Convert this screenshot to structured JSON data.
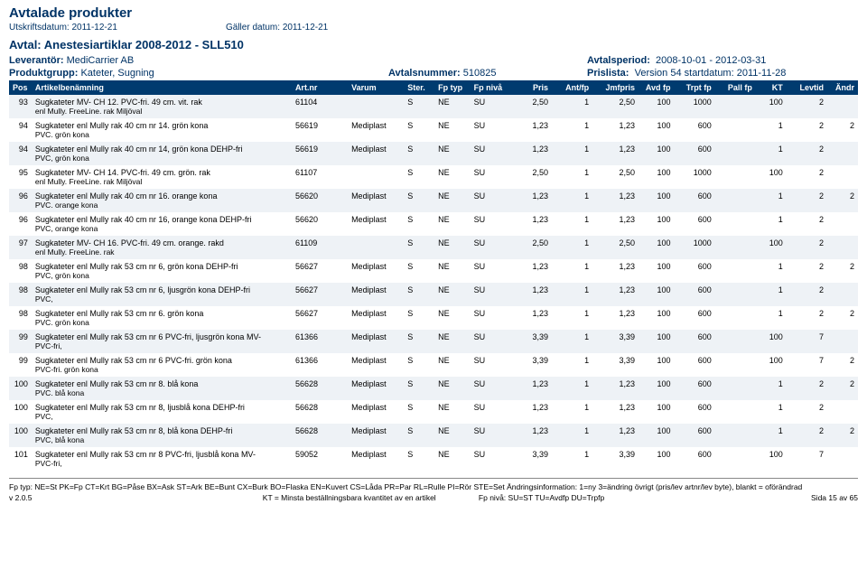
{
  "header": {
    "title": "Avtalade produkter",
    "print_label": "Utskriftsdatum:",
    "print_date": "2011-12-21",
    "valid_label": "Gäller datum:",
    "valid_date": "2011-12-21"
  },
  "agreement": {
    "title": "Avtal: Anestesiartiklar 2008-2012 - SLL510",
    "supplier_label": "Leverantör:",
    "supplier": "MediCarrier AB",
    "period_label": "Avtalsperiod:",
    "period": "2008-10-01 - 2012-03-31",
    "group_label": "Produktgrupp:",
    "group": "Kateter, Sugning",
    "number_label": "Avtalsnummer:",
    "number": "510825",
    "price_label": "Prislista:",
    "price_list": "Version 54 startdatum: 2011-11-28"
  },
  "columns": [
    "Pos",
    "Artikelbenämning",
    "Art.nr",
    "Varum",
    "Ster.",
    "Fp typ",
    "Fp nivå",
    "Pris",
    "Ant/fp",
    "Jmfpris",
    "Avd fp",
    "Trpt fp",
    "Pall fp",
    "KT",
    "Levtid",
    "Ändr"
  ],
  "rows": [
    {
      "pos": "93",
      "name": "Sugkateter MV- CH 12. PVC-fri. 49 cm. vit. rak",
      "sub": "enl Mully. FreeLine. rak Miljöval",
      "art": "61104",
      "varum": "",
      "ster": "S",
      "fptyp": "NE",
      "fpniv": "SU",
      "pris": "2,50",
      "antfp": "1",
      "jmf": "2,50",
      "avd": "100",
      "trpt": "1000",
      "pall": "",
      "kt": "100",
      "lev": "2",
      "andr": ""
    },
    {
      "pos": "94",
      "name": "Sugkateter enl Mully rak 40 cm nr 14. grön kona",
      "sub": "PVC. grön kona",
      "art": "56619",
      "varum": "Mediplast",
      "ster": "S",
      "fptyp": "NE",
      "fpniv": "SU",
      "pris": "1,23",
      "antfp": "1",
      "jmf": "1,23",
      "avd": "100",
      "trpt": "600",
      "pall": "",
      "kt": "1",
      "lev": "2",
      "andr": "2"
    },
    {
      "pos": "94",
      "name": "Sugkateter enl Mully rak 40 cm nr 14, grön kona DEHP-fri",
      "sub": "PVC, grön kona",
      "art": "56619",
      "varum": "Mediplast",
      "ster": "S",
      "fptyp": "NE",
      "fpniv": "SU",
      "pris": "1,23",
      "antfp": "1",
      "jmf": "1,23",
      "avd": "100",
      "trpt": "600",
      "pall": "",
      "kt": "1",
      "lev": "2",
      "andr": ""
    },
    {
      "pos": "95",
      "name": "Sugkateter MV- CH 14. PVC-fri. 49 cm. grön. rak",
      "sub": "enl Mully. FreeLine. rak Miljöval",
      "art": "61107",
      "varum": "",
      "ster": "S",
      "fptyp": "NE",
      "fpniv": "SU",
      "pris": "2,50",
      "antfp": "1",
      "jmf": "2,50",
      "avd": "100",
      "trpt": "1000",
      "pall": "",
      "kt": "100",
      "lev": "2",
      "andr": ""
    },
    {
      "pos": "96",
      "name": "Sugkateter enl Mully rak 40 cm nr 16. orange kona",
      "sub": "PVC. orange kona",
      "art": "56620",
      "varum": "Mediplast",
      "ster": "S",
      "fptyp": "NE",
      "fpniv": "SU",
      "pris": "1,23",
      "antfp": "1",
      "jmf": "1,23",
      "avd": "100",
      "trpt": "600",
      "pall": "",
      "kt": "1",
      "lev": "2",
      "andr": "2"
    },
    {
      "pos": "96",
      "name": "Sugkateter enl Mully rak 40 cm nr 16, orange kona DEHP-fri",
      "sub": "PVC, orange kona",
      "art": "56620",
      "varum": "Mediplast",
      "ster": "S",
      "fptyp": "NE",
      "fpniv": "SU",
      "pris": "1,23",
      "antfp": "1",
      "jmf": "1,23",
      "avd": "100",
      "trpt": "600",
      "pall": "",
      "kt": "1",
      "lev": "2",
      "andr": ""
    },
    {
      "pos": "97",
      "name": "Sugkateter MV- CH 16. PVC-fri. 49 cm. orange. rakd",
      "sub": "enl Mully. FreeLine. rak",
      "art": "61109",
      "varum": "",
      "ster": "S",
      "fptyp": "NE",
      "fpniv": "SU",
      "pris": "2,50",
      "antfp": "1",
      "jmf": "2,50",
      "avd": "100",
      "trpt": "1000",
      "pall": "",
      "kt": "100",
      "lev": "2",
      "andr": ""
    },
    {
      "pos": "98",
      "name": "Sugkateter enl Mully rak 53 cm nr 6, grön kona DEHP-fri",
      "sub": "PVC, grön kona",
      "art": "56627",
      "varum": "Mediplast",
      "ster": "S",
      "fptyp": "NE",
      "fpniv": "SU",
      "pris": "1,23",
      "antfp": "1",
      "jmf": "1,23",
      "avd": "100",
      "trpt": "600",
      "pall": "",
      "kt": "1",
      "lev": "2",
      "andr": "2"
    },
    {
      "pos": "98",
      "name": "Sugkateter enl Mully rak 53 cm nr 6, ljusgrön kona DEHP-fri",
      "sub": "PVC,",
      "art": "56627",
      "varum": "Mediplast",
      "ster": "S",
      "fptyp": "NE",
      "fpniv": "SU",
      "pris": "1,23",
      "antfp": "1",
      "jmf": "1,23",
      "avd": "100",
      "trpt": "600",
      "pall": "",
      "kt": "1",
      "lev": "2",
      "andr": ""
    },
    {
      "pos": "98",
      "name": "Sugkateter enl Mully rak 53 cm nr 6. grön kona",
      "sub": "PVC. grön kona",
      "art": "56627",
      "varum": "Mediplast",
      "ster": "S",
      "fptyp": "NE",
      "fpniv": "SU",
      "pris": "1,23",
      "antfp": "1",
      "jmf": "1,23",
      "avd": "100",
      "trpt": "600",
      "pall": "",
      "kt": "1",
      "lev": "2",
      "andr": "2"
    },
    {
      "pos": "99",
      "name": "Sugkateter enl Mully rak 53 cm nr 6 PVC-fri, ljusgrön kona MV-",
      "sub": "PVC-fri,",
      "art": "61366",
      "varum": "Mediplast",
      "ster": "S",
      "fptyp": "NE",
      "fpniv": "SU",
      "pris": "3,39",
      "antfp": "1",
      "jmf": "3,39",
      "avd": "100",
      "trpt": "600",
      "pall": "",
      "kt": "100",
      "lev": "7",
      "andr": ""
    },
    {
      "pos": "99",
      "name": "Sugkateter enl Mully rak 53 cm nr 6 PVC-fri. grön kona",
      "sub": "PVC-fri. grön kona",
      "art": "61366",
      "varum": "Mediplast",
      "ster": "S",
      "fptyp": "NE",
      "fpniv": "SU",
      "pris": "3,39",
      "antfp": "1",
      "jmf": "3,39",
      "avd": "100",
      "trpt": "600",
      "pall": "",
      "kt": "100",
      "lev": "7",
      "andr": "2"
    },
    {
      "pos": "100",
      "name": "Sugkateter enl Mully rak 53 cm nr 8. blå kona",
      "sub": "PVC. blå kona",
      "art": "56628",
      "varum": "Mediplast",
      "ster": "S",
      "fptyp": "NE",
      "fpniv": "SU",
      "pris": "1,23",
      "antfp": "1",
      "jmf": "1,23",
      "avd": "100",
      "trpt": "600",
      "pall": "",
      "kt": "1",
      "lev": "2",
      "andr": "2"
    },
    {
      "pos": "100",
      "name": "Sugkateter enl Mully rak 53 cm nr 8, ljusblå kona DEHP-fri",
      "sub": "PVC,",
      "art": "56628",
      "varum": "Mediplast",
      "ster": "S",
      "fptyp": "NE",
      "fpniv": "SU",
      "pris": "1,23",
      "antfp": "1",
      "jmf": "1,23",
      "avd": "100",
      "trpt": "600",
      "pall": "",
      "kt": "1",
      "lev": "2",
      "andr": ""
    },
    {
      "pos": "100",
      "name": "Sugkateter enl Mully rak 53 cm nr 8, blå kona DEHP-fri",
      "sub": "PVC, blå kona",
      "art": "56628",
      "varum": "Mediplast",
      "ster": "S",
      "fptyp": "NE",
      "fpniv": "SU",
      "pris": "1,23",
      "antfp": "1",
      "jmf": "1,23",
      "avd": "100",
      "trpt": "600",
      "pall": "",
      "kt": "1",
      "lev": "2",
      "andr": "2"
    },
    {
      "pos": "101",
      "name": "Sugkateter enl Mully rak 53 cm nr 8 PVC-fri, ljusblå kona MV-",
      "sub": "PVC-fri,",
      "art": "59052",
      "varum": "Mediplast",
      "ster": "S",
      "fptyp": "NE",
      "fpniv": "SU",
      "pris": "3,39",
      "antfp": "1",
      "jmf": "3,39",
      "avd": "100",
      "trpt": "600",
      "pall": "",
      "kt": "100",
      "lev": "7",
      "andr": ""
    }
  ],
  "footer": {
    "legend": "Fp typ: NE=St PK=Fp CT=Krt BG=Påse BX=Ask ST=Ark BE=Bunt CX=Burk BO=Flaska EN=Kuvert CS=Låda PR=Par RL=Rulle PI=Rör STE=Set Ändringsinformation: 1=ny 3=ändring övrigt (pris/lev artnr/lev byte), blankt = oförändrad",
    "version": "v 2.0.5",
    "kt_note": "KT = Minsta beställningsbara kvantitet av en artikel",
    "fpniv_note": "Fp nivå: SU=ST TU=Avdfp DU=Trpfp",
    "page": "Sida 15 av 65"
  },
  "style": {
    "header_color": "#003366",
    "th_bg": "#003b6f",
    "th_fg": "#ffffff",
    "row_odd_bg": "#eef2f6",
    "row_even_bg": "#ffffff"
  }
}
